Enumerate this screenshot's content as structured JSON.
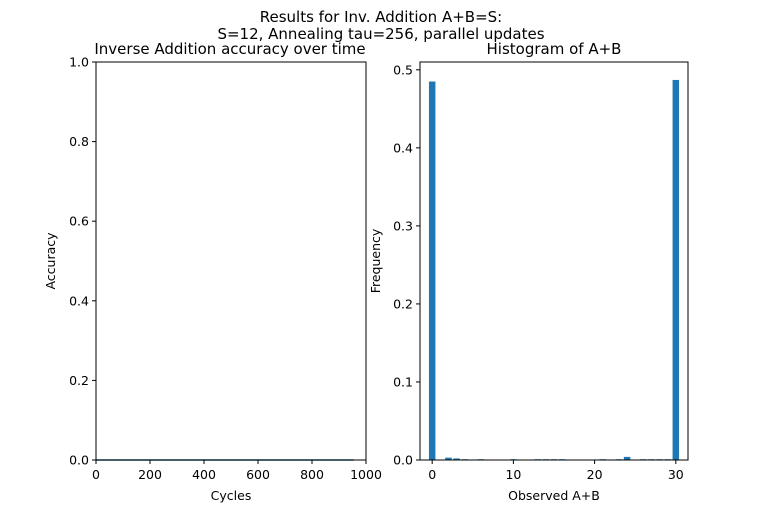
{
  "suptitle": {
    "line1": "Results for Inv. Addition A+B=S:",
    "line2": "S=12, Annealing tau=256, parallel updates"
  },
  "colors": {
    "series": "#1f77b4",
    "axis": "#000000",
    "background": "#ffffff"
  },
  "chart_data": [
    {
      "type": "line",
      "title": "Inverse Addition accuracy over time",
      "xlabel": "Cycles",
      "ylabel": "Accuracy",
      "xlim": [
        0,
        1000
      ],
      "ylim": [
        0,
        1.0
      ],
      "xticks": [
        0,
        200,
        400,
        600,
        800,
        1000
      ],
      "xtick_labels": [
        "0",
        "200",
        "400",
        "600",
        "800",
        "1000"
      ],
      "yticks": [
        0,
        0.2,
        0.4,
        0.6,
        0.8,
        1.0
      ],
      "ytick_labels": [
        "0.0",
        "0.2",
        "0.4",
        "0.6",
        "0.8",
        "1.0"
      ],
      "grid": false,
      "series": [
        {
          "x": [
            0,
            100,
            200,
            300,
            400,
            500,
            600,
            700,
            800,
            900,
            955
          ],
          "y": [
            0,
            0,
            0,
            0,
            0,
            0,
            0,
            0,
            0,
            0,
            0
          ]
        }
      ]
    },
    {
      "type": "bar",
      "title": "Histogram of A+B",
      "xlabel": "Observed A+B",
      "ylabel": "Frequency",
      "xlim": [
        -1.5,
        31.5
      ],
      "ylim": [
        0,
        0.51
      ],
      "xticks": [
        0,
        10,
        20,
        30
      ],
      "xtick_labels": [
        "0",
        "10",
        "20",
        "30"
      ],
      "yticks": [
        0,
        0.1,
        0.2,
        0.3,
        0.4,
        0.5
      ],
      "ytick_labels": [
        "0.0",
        "0.1",
        "0.2",
        "0.3",
        "0.4",
        "0.5"
      ],
      "grid": false,
      "categories": [
        0,
        1,
        2,
        3,
        4,
        5,
        6,
        7,
        8,
        9,
        10,
        11,
        12,
        13,
        14,
        15,
        16,
        17,
        18,
        19,
        20,
        21,
        22,
        23,
        24,
        25,
        26,
        27,
        28,
        29,
        30
      ],
      "values": [
        0.485,
        0.0,
        0.003,
        0.002,
        0.001,
        0.0,
        0.001,
        0.0,
        0.0,
        0.0,
        0.001,
        0.0,
        0.0,
        0.001,
        0.001,
        0.001,
        0.001,
        0.0,
        0.0,
        0.0,
        0.0,
        0.001,
        0.0,
        0.001,
        0.004,
        0.0,
        0.001,
        0.001,
        0.001,
        0.001,
        0.487
      ]
    }
  ]
}
